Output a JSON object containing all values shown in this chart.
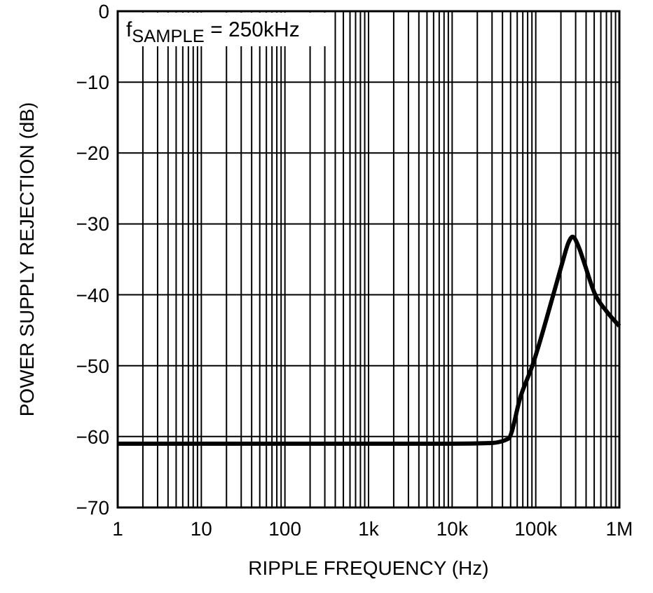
{
  "chart_data": {
    "type": "line",
    "xlabel": "RIPPLE FREQUENCY (Hz)",
    "ylabel": "POWER SUPPLY REJECTION (dB)",
    "annotations": [
      "f$_{SAMPLE}$ = 250kHz"
    ],
    "log": "x",
    "grid": true,
    "line_style": "solid",
    "marker": "none",
    "xlim": [
      1,
      1000000
    ],
    "xticks": [
      1,
      10,
      100,
      {
        "value": 1000,
        "label": "1k"
      },
      {
        "value": 10000,
        "label": "10k"
      },
      {
        "value": 100000,
        "label": "100k"
      },
      {
        "value": 1000000,
        "label": "1M"
      }
    ],
    "ylim": [
      -70,
      0
    ],
    "yticks": [
      {
        "value": -70,
        "label": "−70"
      },
      {
        "value": -60,
        "label": "−60"
      },
      {
        "value": -50,
        "label": "−50"
      },
      {
        "value": -40,
        "label": "−40"
      },
      {
        "value": -30,
        "label": "−30"
      },
      {
        "value": -20,
        "label": "−20"
      },
      {
        "value": -10,
        "label": "−10"
      },
      0
    ],
    "series": [
      {
        "color": "#000000",
        "x": [
          1,
          10,
          100,
          1000,
          10000,
          30000,
          47000,
          66000,
          91000,
          162000,
          210000,
          247000,
          275000,
          330000,
          375000,
          515000,
          700000,
          1000000
        ],
        "values": [
          -61,
          -61,
          -61,
          -61,
          -61,
          -60.9,
          -60.3,
          -54.3,
          -50,
          -40,
          -35.3,
          -32.6,
          -31.8,
          -33.4,
          -35.3,
          -40,
          -42.3,
          -44.4
        ]
      }
    ]
  }
}
